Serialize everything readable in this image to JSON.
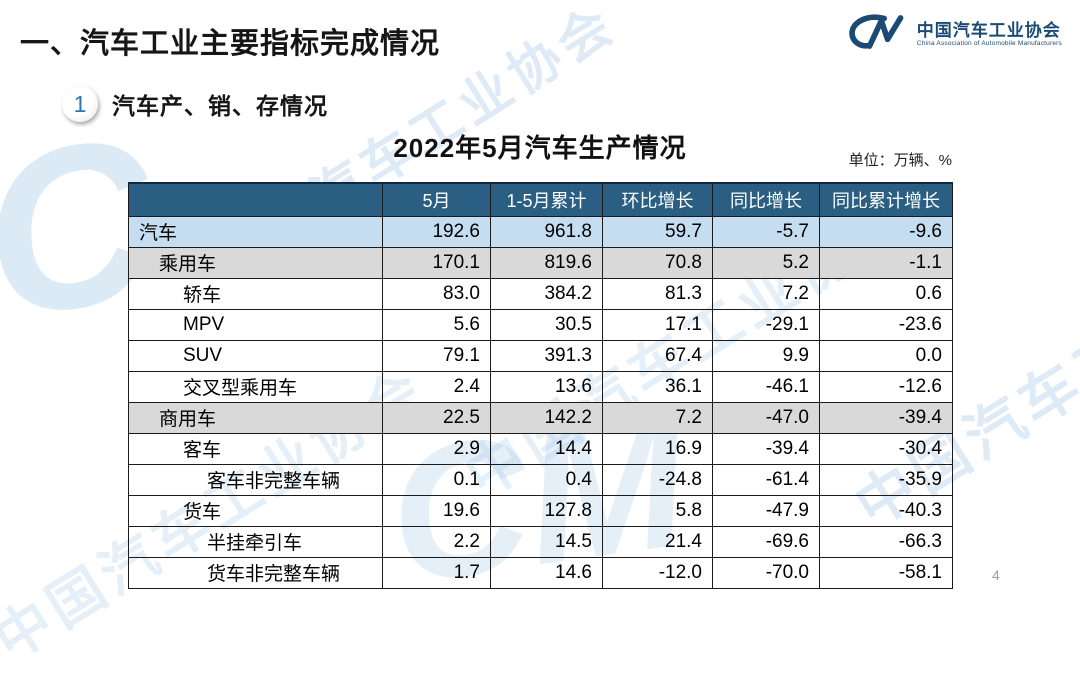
{
  "slide": {
    "heading": "一、汽车工业主要指标完成情况",
    "page_number": "4"
  },
  "logo": {
    "monogram": "CM",
    "title_cn": "中国汽车工业协会",
    "title_en": "China Association of Automobile Manufacturers",
    "color": "#1b4a75"
  },
  "section": {
    "badge_number": "1",
    "title": "汽车产、销、存情况"
  },
  "table_title": "2022年5月汽车生产情况",
  "unit_label": "单位：万辆、%",
  "table": {
    "header_bg": "#2a5e83",
    "highlight_blue": "#c5ddf1",
    "highlight_gray": "#d9d9d9",
    "columns": [
      "",
      "5月",
      "1-5月累计",
      "环比增长",
      "同比增长",
      "同比累计增长"
    ],
    "rows": [
      {
        "label": "汽车",
        "indent": 0,
        "style": "blue",
        "values": [
          "192.6",
          "961.8",
          "59.7",
          "-5.7",
          "-9.6"
        ]
      },
      {
        "label": "乘用车",
        "indent": 1,
        "style": "gray",
        "values": [
          "170.1",
          "819.6",
          "70.8",
          "5.2",
          "-1.1"
        ]
      },
      {
        "label": "轿车",
        "indent": 2,
        "style": "white",
        "values": [
          "83.0",
          "384.2",
          "81.3",
          "7.2",
          "0.6"
        ]
      },
      {
        "label": "MPV",
        "indent": 2,
        "style": "white",
        "values": [
          "5.6",
          "30.5",
          "17.1",
          "-29.1",
          "-23.6"
        ]
      },
      {
        "label": "SUV",
        "indent": 2,
        "style": "white",
        "values": [
          "79.1",
          "391.3",
          "67.4",
          "9.9",
          "0.0"
        ]
      },
      {
        "label": "交叉型乘用车",
        "indent": 2,
        "style": "white",
        "values": [
          "2.4",
          "13.6",
          "36.1",
          "-46.1",
          "-12.6"
        ]
      },
      {
        "label": "商用车",
        "indent": 1,
        "style": "gray",
        "values": [
          "22.5",
          "142.2",
          "7.2",
          "-47.0",
          "-39.4"
        ]
      },
      {
        "label": "客车",
        "indent": 2,
        "style": "white",
        "values": [
          "2.9",
          "14.4",
          "16.9",
          "-39.4",
          "-30.4"
        ]
      },
      {
        "label": "客车非完整车辆",
        "indent": 3,
        "style": "white",
        "values": [
          "0.1",
          "0.4",
          "-24.8",
          "-61.4",
          "-35.9"
        ]
      },
      {
        "label": "货车",
        "indent": 2,
        "style": "white",
        "values": [
          "19.6",
          "127.8",
          "5.8",
          "-47.9",
          "-40.3"
        ]
      },
      {
        "label": "半挂牵引车",
        "indent": 3,
        "style": "white",
        "values": [
          "2.2",
          "14.5",
          "21.4",
          "-69.6",
          "-66.3"
        ]
      },
      {
        "label": "货车非完整车辆",
        "indent": 3,
        "style": "white",
        "values": [
          "1.7",
          "14.6",
          "-12.0",
          "-70.0",
          "-58.1"
        ]
      }
    ]
  },
  "watermark": {
    "text": "中国汽车工业协会",
    "monogram_c": "C",
    "monogram_cm": "CM",
    "color": "#a9cde9"
  }
}
